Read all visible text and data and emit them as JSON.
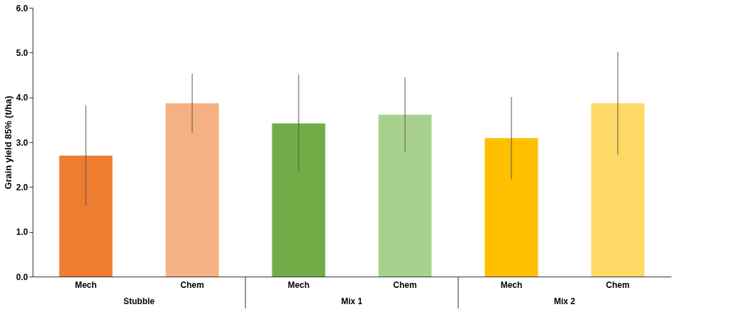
{
  "chart_data": {
    "type": "bar",
    "ylabel": "Grain yield 85% (t/ha)",
    "categories": [
      "Mech",
      "Chem",
      "Mech",
      "Chem",
      "Mech",
      "Chem"
    ],
    "values": [
      2.7,
      3.87,
      3.42,
      3.61,
      3.09,
      3.87
    ],
    "errors": [
      1.12,
      0.66,
      1.09,
      0.84,
      0.92,
      1.15
    ],
    "colors": [
      "#ed7d31",
      "#f4b183",
      "#70ad47",
      "#a9d18e",
      "#ffc000",
      "#ffd966"
    ],
    "ylim": [
      0,
      6
    ],
    "yticks": [
      {
        "value": 0,
        "label": "0.0"
      },
      {
        "value": 1,
        "label": "1.0"
      },
      {
        "value": 2,
        "label": "2.0"
      },
      {
        "value": 3,
        "label": "3.0"
      },
      {
        "value": 4,
        "label": "4.0"
      },
      {
        "value": 5,
        "label": "5.0"
      },
      {
        "value": 6,
        "label": "6.0"
      }
    ],
    "annotations": [
      "Stubble",
      "Mix 1",
      "Mix 2"
    ],
    "grid": false
  }
}
